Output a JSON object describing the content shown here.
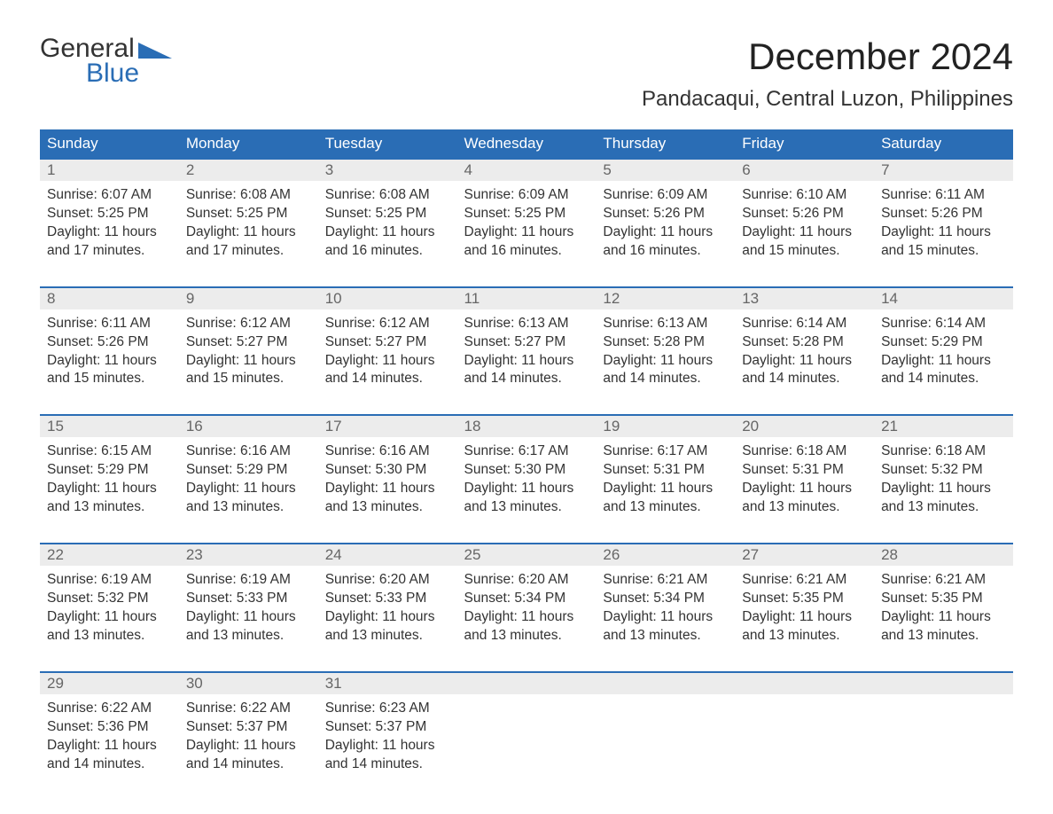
{
  "logo": {
    "line1": "General",
    "line2": "Blue",
    "accent_color": "#2a6db5"
  },
  "title": "December 2024",
  "location": "Pandacaqui, Central Luzon, Philippines",
  "colors": {
    "header_bg": "#2a6db5",
    "header_text": "#ffffff",
    "daynum_bg": "#ececec",
    "daynum_text": "#666666",
    "body_text": "#333333",
    "row_border": "#2a6db5"
  },
  "day_headers": [
    "Sunday",
    "Monday",
    "Tuesday",
    "Wednesday",
    "Thursday",
    "Friday",
    "Saturday"
  ],
  "weeks": [
    [
      {
        "day": "1",
        "sunrise": "Sunrise: 6:07 AM",
        "sunset": "Sunset: 5:25 PM",
        "daylight": "Daylight: 11 hours and 17 minutes."
      },
      {
        "day": "2",
        "sunrise": "Sunrise: 6:08 AM",
        "sunset": "Sunset: 5:25 PM",
        "daylight": "Daylight: 11 hours and 17 minutes."
      },
      {
        "day": "3",
        "sunrise": "Sunrise: 6:08 AM",
        "sunset": "Sunset: 5:25 PM",
        "daylight": "Daylight: 11 hours and 16 minutes."
      },
      {
        "day": "4",
        "sunrise": "Sunrise: 6:09 AM",
        "sunset": "Sunset: 5:25 PM",
        "daylight": "Daylight: 11 hours and 16 minutes."
      },
      {
        "day": "5",
        "sunrise": "Sunrise: 6:09 AM",
        "sunset": "Sunset: 5:26 PM",
        "daylight": "Daylight: 11 hours and 16 minutes."
      },
      {
        "day": "6",
        "sunrise": "Sunrise: 6:10 AM",
        "sunset": "Sunset: 5:26 PM",
        "daylight": "Daylight: 11 hours and 15 minutes."
      },
      {
        "day": "7",
        "sunrise": "Sunrise: 6:11 AM",
        "sunset": "Sunset: 5:26 PM",
        "daylight": "Daylight: 11 hours and 15 minutes."
      }
    ],
    [
      {
        "day": "8",
        "sunrise": "Sunrise: 6:11 AM",
        "sunset": "Sunset: 5:26 PM",
        "daylight": "Daylight: 11 hours and 15 minutes."
      },
      {
        "day": "9",
        "sunrise": "Sunrise: 6:12 AM",
        "sunset": "Sunset: 5:27 PM",
        "daylight": "Daylight: 11 hours and 15 minutes."
      },
      {
        "day": "10",
        "sunrise": "Sunrise: 6:12 AM",
        "sunset": "Sunset: 5:27 PM",
        "daylight": "Daylight: 11 hours and 14 minutes."
      },
      {
        "day": "11",
        "sunrise": "Sunrise: 6:13 AM",
        "sunset": "Sunset: 5:27 PM",
        "daylight": "Daylight: 11 hours and 14 minutes."
      },
      {
        "day": "12",
        "sunrise": "Sunrise: 6:13 AM",
        "sunset": "Sunset: 5:28 PM",
        "daylight": "Daylight: 11 hours and 14 minutes."
      },
      {
        "day": "13",
        "sunrise": "Sunrise: 6:14 AM",
        "sunset": "Sunset: 5:28 PM",
        "daylight": "Daylight: 11 hours and 14 minutes."
      },
      {
        "day": "14",
        "sunrise": "Sunrise: 6:14 AM",
        "sunset": "Sunset: 5:29 PM",
        "daylight": "Daylight: 11 hours and 14 minutes."
      }
    ],
    [
      {
        "day": "15",
        "sunrise": "Sunrise: 6:15 AM",
        "sunset": "Sunset: 5:29 PM",
        "daylight": "Daylight: 11 hours and 13 minutes."
      },
      {
        "day": "16",
        "sunrise": "Sunrise: 6:16 AM",
        "sunset": "Sunset: 5:29 PM",
        "daylight": "Daylight: 11 hours and 13 minutes."
      },
      {
        "day": "17",
        "sunrise": "Sunrise: 6:16 AM",
        "sunset": "Sunset: 5:30 PM",
        "daylight": "Daylight: 11 hours and 13 minutes."
      },
      {
        "day": "18",
        "sunrise": "Sunrise: 6:17 AM",
        "sunset": "Sunset: 5:30 PM",
        "daylight": "Daylight: 11 hours and 13 minutes."
      },
      {
        "day": "19",
        "sunrise": "Sunrise: 6:17 AM",
        "sunset": "Sunset: 5:31 PM",
        "daylight": "Daylight: 11 hours and 13 minutes."
      },
      {
        "day": "20",
        "sunrise": "Sunrise: 6:18 AM",
        "sunset": "Sunset: 5:31 PM",
        "daylight": "Daylight: 11 hours and 13 minutes."
      },
      {
        "day": "21",
        "sunrise": "Sunrise: 6:18 AM",
        "sunset": "Sunset: 5:32 PM",
        "daylight": "Daylight: 11 hours and 13 minutes."
      }
    ],
    [
      {
        "day": "22",
        "sunrise": "Sunrise: 6:19 AM",
        "sunset": "Sunset: 5:32 PM",
        "daylight": "Daylight: 11 hours and 13 minutes."
      },
      {
        "day": "23",
        "sunrise": "Sunrise: 6:19 AM",
        "sunset": "Sunset: 5:33 PM",
        "daylight": "Daylight: 11 hours and 13 minutes."
      },
      {
        "day": "24",
        "sunrise": "Sunrise: 6:20 AM",
        "sunset": "Sunset: 5:33 PM",
        "daylight": "Daylight: 11 hours and 13 minutes."
      },
      {
        "day": "25",
        "sunrise": "Sunrise: 6:20 AM",
        "sunset": "Sunset: 5:34 PM",
        "daylight": "Daylight: 11 hours and 13 minutes."
      },
      {
        "day": "26",
        "sunrise": "Sunrise: 6:21 AM",
        "sunset": "Sunset: 5:34 PM",
        "daylight": "Daylight: 11 hours and 13 minutes."
      },
      {
        "day": "27",
        "sunrise": "Sunrise: 6:21 AM",
        "sunset": "Sunset: 5:35 PM",
        "daylight": "Daylight: 11 hours and 13 minutes."
      },
      {
        "day": "28",
        "sunrise": "Sunrise: 6:21 AM",
        "sunset": "Sunset: 5:35 PM",
        "daylight": "Daylight: 11 hours and 13 minutes."
      }
    ],
    [
      {
        "day": "29",
        "sunrise": "Sunrise: 6:22 AM",
        "sunset": "Sunset: 5:36 PM",
        "daylight": "Daylight: 11 hours and 14 minutes."
      },
      {
        "day": "30",
        "sunrise": "Sunrise: 6:22 AM",
        "sunset": "Sunset: 5:37 PM",
        "daylight": "Daylight: 11 hours and 14 minutes."
      },
      {
        "day": "31",
        "sunrise": "Sunrise: 6:23 AM",
        "sunset": "Sunset: 5:37 PM",
        "daylight": "Daylight: 11 hours and 14 minutes."
      },
      null,
      null,
      null,
      null
    ]
  ]
}
